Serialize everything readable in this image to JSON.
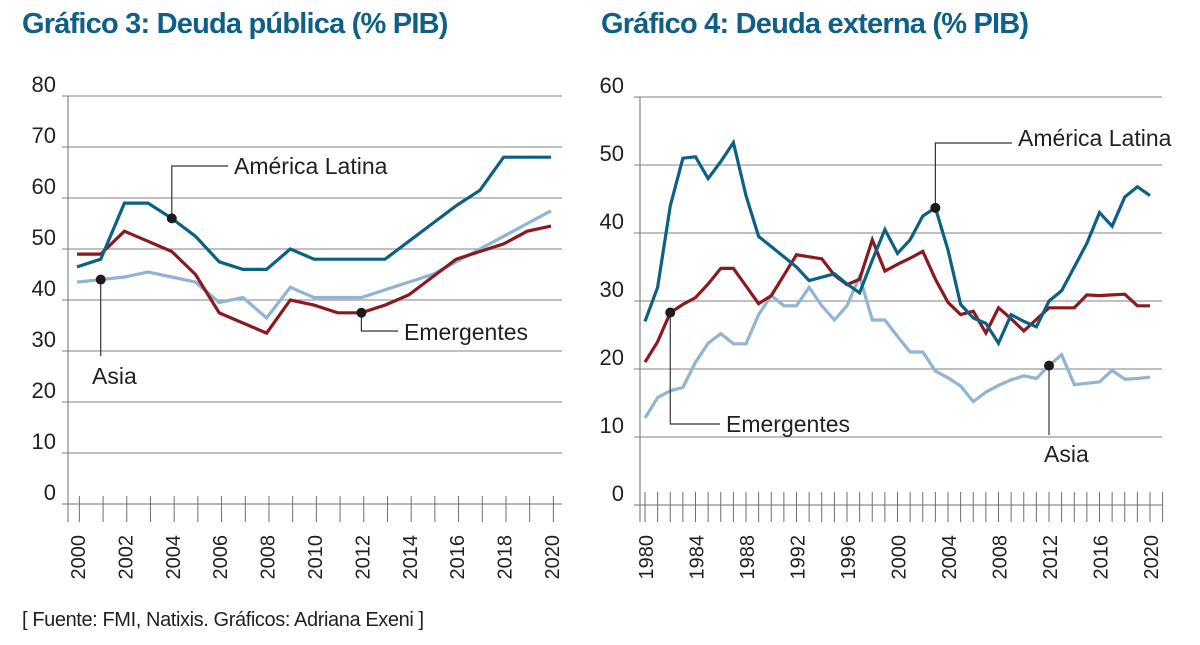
{
  "source": "[ Fuente: FMI, Natixis. Gráficos: Adriana Exeni ]",
  "colors": {
    "title": "#0f5f86",
    "america_latina": "#0b6183",
    "emergentes": "#8b1a1f",
    "asia": "#8fb4d4"
  },
  "chart_data": [
    {
      "type": "line",
      "title": "Gráfico 3: Deuda pública (% PIB)",
      "xlabel": "",
      "ylabel": "",
      "ylim": [
        0,
        80
      ],
      "yticks": [
        0,
        10,
        20,
        30,
        40,
        50,
        60,
        70,
        80
      ],
      "xlim": [
        2000,
        2020
      ],
      "xtick_labels": [
        "2000",
        "2002",
        "2004",
        "2006",
        "2008",
        "2010",
        "2012",
        "2014",
        "2016",
        "2018",
        "2020"
      ],
      "grid": true,
      "x": [
        2000,
        2001,
        2002,
        2003,
        2004,
        2005,
        2006,
        2007,
        2008,
        2009,
        2010,
        2011,
        2012,
        2013,
        2014,
        2015,
        2016,
        2017,
        2018,
        2019,
        2020
      ],
      "series": [
        {
          "name": "América Latina",
          "color_key": "america_latina",
          "values": [
            46.5,
            48,
            59,
            59,
            56,
            52.5,
            47.5,
            46,
            46,
            50,
            48,
            48,
            48,
            48,
            51.5,
            55,
            58.5,
            61.5,
            68,
            68,
            68
          ]
        },
        {
          "name": "Emergentes",
          "color_key": "emergentes",
          "values": [
            49,
            49,
            53.5,
            51.5,
            49.5,
            45,
            37.5,
            35.5,
            33.5,
            40,
            39,
            37.5,
            37.5,
            39,
            41,
            44.5,
            48,
            49.5,
            51,
            53.5,
            54.5
          ]
        },
        {
          "name": "Asia",
          "color_key": "asia",
          "values": [
            43.5,
            44,
            44.5,
            45.5,
            44.5,
            43.5,
            39.5,
            40.5,
            36.5,
            42.5,
            40.5,
            40.5,
            40.5,
            42,
            43.5,
            45,
            47.5,
            50,
            52.5,
            55,
            57.5
          ]
        }
      ],
      "annotations": [
        {
          "text": "América Latina",
          "series": "América Latina",
          "x": 2004
        },
        {
          "text": "Emergentes",
          "series": "Emergentes",
          "x": 2012
        },
        {
          "text": "Asia",
          "series": "Asia",
          "x": 2001
        }
      ]
    },
    {
      "type": "line",
      "title": "Gráfico 4: Deuda externa (% PIB)",
      "xlabel": "",
      "ylabel": "",
      "ylim": [
        0,
        60
      ],
      "yticks": [
        0,
        10,
        20,
        30,
        40,
        50,
        60
      ],
      "xlim": [
        1980,
        2020
      ],
      "xtick_labels": [
        "1980",
        "1984",
        "1988",
        "1992",
        "1996",
        "2000",
        "2004",
        "2008",
        "2012",
        "2016",
        "2020"
      ],
      "grid": true,
      "x": [
        1980,
        1981,
        1982,
        1983,
        1984,
        1985,
        1986,
        1987,
        1988,
        1989,
        1990,
        1991,
        1992,
        1993,
        1994,
        1995,
        1996,
        1997,
        1998,
        1999,
        2000,
        2001,
        2002,
        2003,
        2004,
        2005,
        2006,
        2007,
        2008,
        2009,
        2010,
        2011,
        2012,
        2013,
        2014,
        2015,
        2016,
        2017,
        2018,
        2019,
        2020
      ],
      "series": [
        {
          "name": "América Latina",
          "color_key": "america_latina",
          "values": [
            27,
            32,
            44,
            51,
            51.2,
            48,
            50.5,
            53.3,
            45.5,
            39.5,
            38,
            36.5,
            35,
            33,
            33.5,
            34,
            32.5,
            31.2,
            36,
            40.5,
            37,
            39,
            42.5,
            43.7,
            37.5,
            29.5,
            27.5,
            26.7,
            23.8,
            28,
            27,
            26.2,
            30,
            31.5,
            35,
            38.5,
            43,
            41,
            45.3,
            46.8,
            45.5
          ]
        },
        {
          "name": "Emergentes",
          "color_key": "emergentes",
          "values": [
            21,
            24,
            28.3,
            29.5,
            30.5,
            32.5,
            34.8,
            34.8,
            32.2,
            29.6,
            30.8,
            33.8,
            36.8,
            36.5,
            36.2,
            33.8,
            32.4,
            33.2,
            39,
            34.4,
            35.4,
            36.3,
            37.3,
            33.2,
            29.8,
            28,
            28.5,
            25.3,
            29,
            27.4,
            25.6,
            27.3,
            29,
            29,
            29,
            30.9,
            30.8,
            30.9,
            31,
            29.3,
            29.3
          ]
        },
        {
          "name": "Asia",
          "color_key": "asia",
          "values": [
            12.8,
            15.8,
            16.8,
            17.3,
            21,
            23.8,
            25.2,
            23.7,
            23.7,
            28,
            30.8,
            29.3,
            29.3,
            32,
            29.3,
            27.2,
            29.3,
            33.6,
            27.2,
            27.2,
            24.8,
            22.5,
            22.5,
            19.7,
            18.7,
            17.5,
            15.2,
            16.6,
            17.6,
            18.4,
            19,
            18.6,
            20.5,
            22.1,
            17.7,
            17.9,
            18.1,
            19.8,
            18.5,
            18.6,
            18.8
          ]
        }
      ],
      "annotations": [
        {
          "text": "América Latina",
          "series": "América Latina",
          "x": 2003
        },
        {
          "text": "Emergentes",
          "series": "Emergentes",
          "x": 1982
        },
        {
          "text": "Asia",
          "series": "Asia",
          "x": 2012
        }
      ]
    }
  ]
}
